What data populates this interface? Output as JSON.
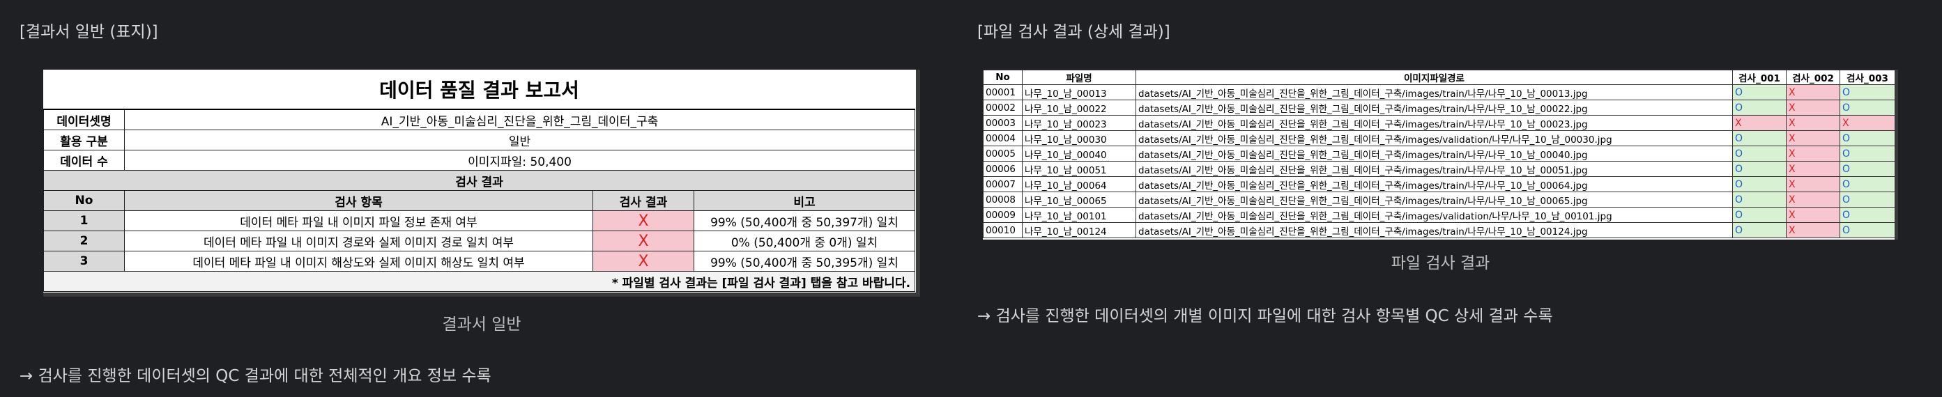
{
  "left": {
    "section_title": "[결과서 일반 (표지)]",
    "caption": "결과서 일반",
    "note": "→ 검사를 진행한 데이터셋의 QC 결과에 대한 전체적인 개요 정보 수록",
    "report": {
      "title": "데이터 품질 결과 보고서",
      "dataset_label": "데이터셋명",
      "dataset_value": "AI_기반_아동_미술심리_진단을_위한_그림_데이터_구축",
      "usage_label": "활용 구분",
      "usage_value": "일반",
      "count_label": "데이터 수",
      "count_value": "이미지파일: 50,400",
      "results_header": "검사 결과",
      "col_no": "No",
      "col_item": "검사 항목",
      "col_result": "검사 결과",
      "col_note": "비고",
      "rows": [
        {
          "no": "1",
          "item": "데이터 메타 파일 내 이미지 파일 정보 존재 여부",
          "result": "X",
          "note": "99% (50,400개 중 50,397개) 일치"
        },
        {
          "no": "2",
          "item": "데이터 메타 파일 내 이미지 경로와 실제 이미지 경로 일치 여부",
          "result": "X",
          "note": "0% (50,400개 중 0개) 일치"
        },
        {
          "no": "3",
          "item": "데이터 메타 파일 내 이미지 해상도와 실제 이미지 해상도 일치 여부",
          "result": "X",
          "note": "99% (50,400개 중 50,395개) 일치"
        }
      ],
      "footer": "* 파일별 검사 결과는 [파일 검사 결과] 탭을 참고 바랍니다."
    }
  },
  "right": {
    "section_title": "[파일 검사 결과 (상세 결과)]",
    "caption": "파일 검사 결과",
    "note": "→ 검사를 진행한 데이터셋의 개별 이미지 파일에 대한 검사 항목별 QC 상세 결과 수록",
    "table": {
      "headers": [
        "No",
        "파일명",
        "이미지파일경로",
        "검사_001",
        "검사_002",
        "검사_003"
      ],
      "rows": [
        [
          "00001",
          "나무_10_남_00013",
          "datasets/AI_기반_아동_미술심리_진단을_위한_그림_데이터_구축/images/train/나무/나무_10_남_00013.jpg",
          "O",
          "X",
          "O"
        ],
        [
          "00002",
          "나무_10_남_00022",
          "datasets/AI_기반_아동_미술심리_진단을_위한_그림_데이터_구축/images/train/나무/나무_10_남_00022.jpg",
          "O",
          "X",
          "O"
        ],
        [
          "00003",
          "나무_10_남_00023",
          "datasets/AI_기반_아동_미술심리_진단을_위한_그림_데이터_구축/images/train/나무/나무_10_남_00023.jpg",
          "X",
          "X",
          "X"
        ],
        [
          "00004",
          "나무_10_남_00030",
          "datasets/AI_기반_아동_미술심리_진단을_위한_그림_데이터_구축/images/validation/나무/나무_10_남_00030.jpg",
          "O",
          "X",
          "O"
        ],
        [
          "00005",
          "나무_10_남_00040",
          "datasets/AI_기반_아동_미술심리_진단을_위한_그림_데이터_구축/images/train/나무/나무_10_남_00040.jpg",
          "O",
          "X",
          "O"
        ],
        [
          "00006",
          "나무_10_남_00051",
          "datasets/AI_기반_아동_미술심리_진단을_위한_그림_데이터_구축/images/train/나무/나무_10_남_00051.jpg",
          "O",
          "X",
          "O"
        ],
        [
          "00007",
          "나무_10_남_00064",
          "datasets/AI_기반_아동_미술심리_진단을_위한_그림_데이터_구축/images/train/나무/나무_10_남_00064.jpg",
          "O",
          "X",
          "O"
        ],
        [
          "00008",
          "나무_10_남_00065",
          "datasets/AI_기반_아동_미술심리_진단을_위한_그림_데이터_구축/images/train/나무/나무_10_남_00065.jpg",
          "O",
          "X",
          "O"
        ],
        [
          "00009",
          "나무_10_남_00101",
          "datasets/AI_기반_아동_미술심리_진단을_위한_그림_데이터_구축/images/validation/나무/나무_10_남_00101.jpg",
          "O",
          "X",
          "O"
        ],
        [
          "00010",
          "나무_10_남_00124",
          "datasets/AI_기반_아동_미술심리_진단을_위한_그림_데이터_구축/images/train/나무/나무_10_남_00124.jpg",
          "O",
          "X",
          "O"
        ]
      ]
    }
  }
}
